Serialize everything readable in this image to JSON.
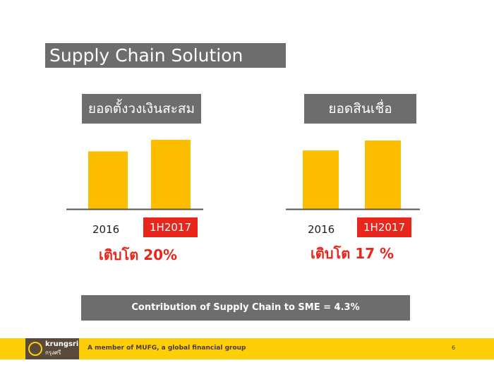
{
  "title": "Supply Chain Solution",
  "charts_labels": {
    "left": "ยอดตั้งวงเงินสะสม",
    "right": "ยอดสินเชื่อ"
  },
  "chart_data": [
    {
      "type": "bar",
      "title": "ยอดตั้งวงเงินสะสม",
      "categories": [
        "2016",
        "1H2017"
      ],
      "values": [
        100,
        120
      ],
      "highlight_category": "1H2017",
      "growth_label": "เติบโต 20%",
      "colors": {
        "bar": "#fdbe00",
        "baseline": "#555555",
        "highlight": "#e8261c"
      }
    },
    {
      "type": "bar",
      "title": "ยอดสินเชื่อ",
      "categories": [
        "2016",
        "1H2017"
      ],
      "values": [
        100,
        117
      ],
      "highlight_category": "1H2017",
      "growth_label": "เติบโต 17 %",
      "colors": {
        "bar": "#fdbe00",
        "baseline": "#555555",
        "highlight": "#e8261c"
      }
    }
  ],
  "contribution": "Contribution of Supply Chain to SME = 4.3%",
  "footer": {
    "logo_name": "krungsri",
    "logo_sub": "กรุงศรี",
    "tagline": "A member of MUFG, a global financial group",
    "page": "6"
  }
}
